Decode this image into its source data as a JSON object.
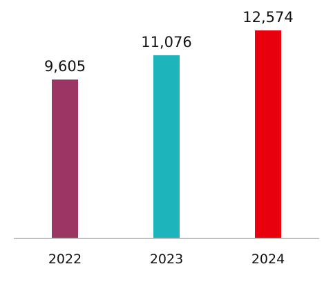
{
  "chart_data": {
    "type": "bar",
    "categories": [
      "2022",
      "2023",
      "2024"
    ],
    "values": [
      9605,
      11076,
      12574
    ],
    "data_labels": [
      "9,605",
      "11,076",
      "12,574"
    ],
    "colors": [
      "#9b3564",
      "#1db5bb",
      "#e8000d"
    ],
    "axis_color": "#bfbfbf",
    "ylim": [
      0,
      12574
    ],
    "grid": false,
    "legend": "none",
    "title": "",
    "xlabel": "",
    "ylabel": ""
  }
}
